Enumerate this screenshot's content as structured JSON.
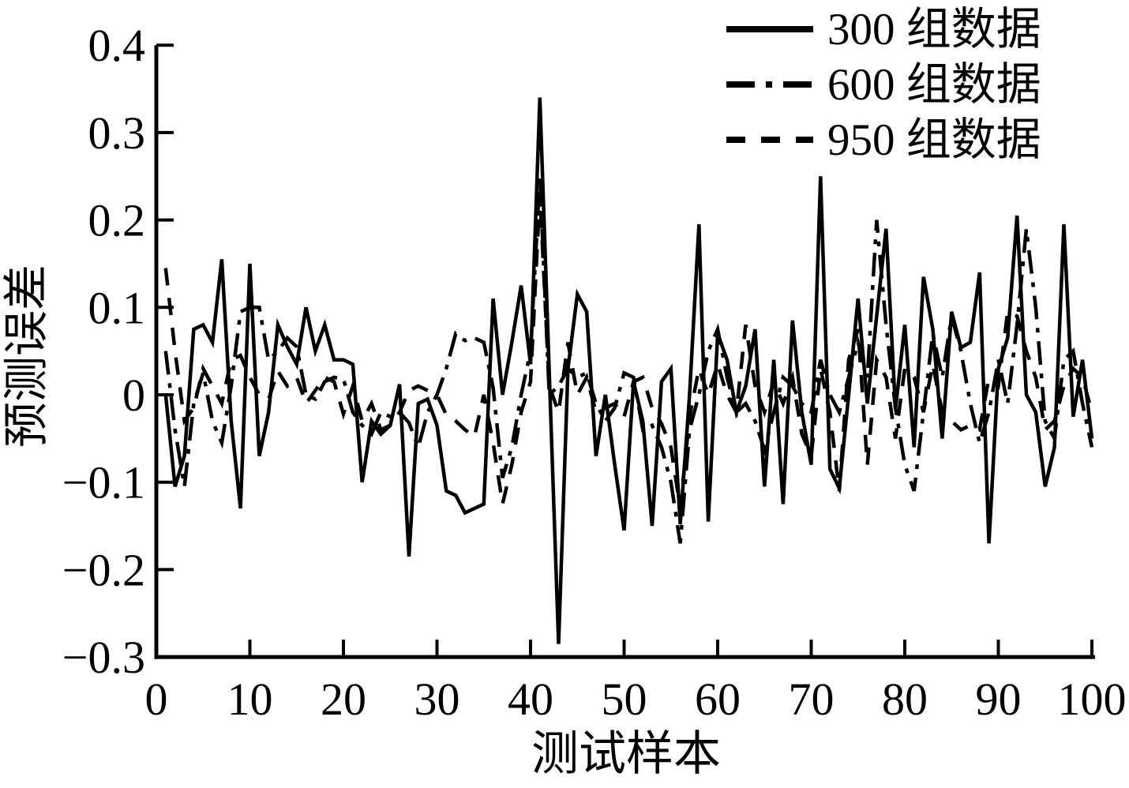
{
  "figure_title": "",
  "legend": {
    "position": "top-right",
    "items": [
      {
        "label": "300 组数据",
        "style": "solid"
      },
      {
        "label": "600 组数据",
        "style": "dash-dot"
      },
      {
        "label": "950 组数据",
        "style": "dashed"
      }
    ]
  },
  "colors": {
    "line": "#000000",
    "background": "#ffffff"
  },
  "chart_data": {
    "type": "line",
    "title": "",
    "xlabel": "测试样本",
    "ylabel": "预测误差",
    "xlim": [
      0,
      100
    ],
    "ylim": [
      -0.3,
      0.4
    ],
    "x_ticks": [
      0,
      10,
      20,
      30,
      40,
      50,
      60,
      70,
      80,
      90,
      100
    ],
    "y_ticks": [
      -0.3,
      -0.2,
      -0.1,
      0,
      0.1,
      0.2,
      0.3,
      0.4
    ],
    "grid": false,
    "legend_position": "top-right",
    "x_start": 1,
    "x_step": 1,
    "series": [
      {
        "name": "300 组数据",
        "line_style": "solid",
        "color": "#000000",
        "values": [
          0.0,
          -0.105,
          -0.07,
          0.075,
          0.08,
          0.06,
          0.155,
          -0.03,
          -0.13,
          0.15,
          -0.07,
          -0.02,
          0.08,
          0.055,
          0.035,
          0.1,
          0.05,
          0.08,
          0.04,
          0.04,
          0.035,
          -0.1,
          -0.03,
          -0.045,
          -0.035,
          0.012,
          -0.185,
          -0.01,
          -0.005,
          -0.035,
          -0.11,
          -0.115,
          -0.135,
          -0.13,
          -0.125,
          0.11,
          0.0,
          0.06,
          0.125,
          0.035,
          0.34,
          0.025,
          -0.285,
          0.03,
          0.115,
          0.095,
          -0.07,
          0.0,
          -0.08,
          -0.155,
          0.015,
          -0.03,
          -0.15,
          0.015,
          0.03,
          -0.148,
          0.0,
          0.195,
          -0.145,
          0.07,
          0.04,
          -0.02,
          0.01,
          0.075,
          -0.105,
          0.04,
          -0.125,
          0.085,
          -0.02,
          -0.08,
          0.25,
          -0.085,
          -0.107,
          0.0,
          0.11,
          -0.01,
          0.09,
          0.19,
          -0.017,
          0.08,
          -0.06,
          0.135,
          0.075,
          -0.05,
          0.095,
          0.054,
          0.06,
          0.14,
          -0.17,
          0.03,
          0.065,
          0.205,
          0.0,
          -0.02,
          -0.105,
          -0.06,
          0.195,
          -0.025,
          0.04,
          -0.05
        ]
      },
      {
        "name": "600 组数据",
        "line_style": "dash-dot",
        "color": "#000000",
        "values": [
          0.05,
          -0.04,
          -0.105,
          -0.01,
          0.025,
          -0.03,
          -0.055,
          0.01,
          0.095,
          0.1,
          0.1,
          0.04,
          0.05,
          0.065,
          0.055,
          0.0,
          -0.005,
          0.015,
          0.02,
          0.018,
          -0.02,
          -0.035,
          -0.045,
          -0.02,
          -0.025,
          -0.02,
          -0.032,
          -0.06,
          -0.02,
          0.0,
          0.03,
          0.07,
          0.062,
          0.065,
          0.06,
          0.008,
          -0.095,
          -0.06,
          0.0,
          0.05,
          0.25,
          0.0,
          0.01,
          0.03,
          0.02,
          0.025,
          -0.01,
          -0.03,
          -0.015,
          0.025,
          0.02,
          -0.04,
          -0.035,
          -0.06,
          -0.1,
          -0.17,
          -0.04,
          0.0,
          0.05,
          0.075,
          0.02,
          -0.02,
          -0.01,
          -0.03,
          -0.063,
          -0.02,
          0.02,
          0.01,
          -0.01,
          -0.02,
          0.04,
          0.0,
          -0.02,
          0.02,
          0.06,
          0.02,
          0.2,
          0.08,
          -0.015,
          -0.08,
          -0.11,
          -0.02,
          0.07,
          0.02,
          0.09,
          0.05,
          -0.01,
          -0.055,
          -0.02,
          0.04,
          -0.01,
          0.08,
          0.19,
          0.1,
          -0.03,
          -0.05,
          0.04,
          0.05,
          -0.01,
          -0.06
        ]
      },
      {
        "name": "950 组数据",
        "line_style": "dashed",
        "color": "#000000",
        "values": [
          0.145,
          0.05,
          -0.03,
          -0.015,
          0.03,
          0.01,
          -0.01,
          0.04,
          0.045,
          0.02,
          0.0,
          -0.005,
          0.027,
          0.01,
          0.02,
          -0.01,
          0.005,
          0.02,
          0.015,
          -0.022,
          0.01,
          -0.03,
          -0.01,
          -0.04,
          -0.035,
          -0.02,
          0.005,
          0.01,
          0.005,
          0.0,
          -0.023,
          -0.03,
          -0.04,
          -0.048,
          0.0,
          -0.055,
          -0.125,
          -0.08,
          -0.02,
          0.015,
          0.23,
          0.01,
          -0.02,
          0.06,
          0.0,
          0.02,
          -0.02,
          -0.015,
          -0.01,
          -0.025,
          0.015,
          0.02,
          -0.015,
          -0.033,
          -0.06,
          -0.13,
          -0.025,
          0.03,
          0.0,
          0.035,
          0.0,
          -0.02,
          0.08,
          0.01,
          -0.02,
          0.015,
          -0.01,
          0.02,
          -0.045,
          -0.07,
          0.03,
          -0.02,
          -0.11,
          0.04,
          0.075,
          -0.08,
          0.04,
          0.02,
          -0.05,
          0.03,
          0.02,
          -0.02,
          0.035,
          -0.02,
          -0.03,
          -0.04,
          -0.035,
          -0.04,
          0.02,
          0.01,
          0.095,
          0.09,
          0.05,
          0.02,
          -0.04,
          -0.03,
          0.01,
          0.03,
          0.02,
          -0.02
        ]
      }
    ]
  }
}
